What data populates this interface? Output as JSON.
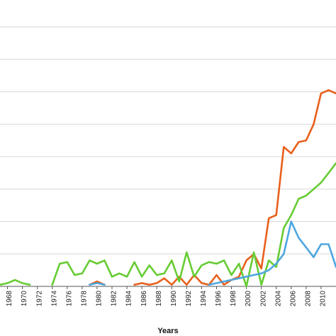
{
  "chart_data": {
    "type": "line",
    "xlabel": "Years",
    "ylabel": "",
    "title": "",
    "xlim": [
      1967,
      2012
    ],
    "ylim": [
      0,
      8
    ],
    "grid": true,
    "x_ticks": [
      1968,
      1970,
      1972,
      1974,
      1976,
      1978,
      1980,
      1982,
      1984,
      1986,
      1988,
      1990,
      1992,
      1994,
      1996,
      1998,
      2000,
      2002,
      2004,
      2006,
      2008,
      2010
    ],
    "series": [
      {
        "color": "#e8601c",
        "points": [
          [
            1979,
            0.05
          ],
          [
            1980,
            0.15
          ],
          [
            1981,
            0.05
          ],
          [
            1985,
            0.05
          ],
          [
            1986,
            0.1
          ],
          [
            1987,
            0.05
          ],
          [
            1988,
            0.1
          ],
          [
            1989,
            0.25
          ],
          [
            1990,
            0.05
          ],
          [
            1991,
            0.3
          ],
          [
            1992,
            0.05
          ],
          [
            1993,
            0.35
          ],
          [
            1994,
            0.1
          ],
          [
            1995,
            0.05
          ],
          [
            1996,
            0.35
          ],
          [
            1997,
            0.05
          ],
          [
            1998,
            0.2
          ],
          [
            1999,
            0.3
          ],
          [
            2000,
            0.8
          ],
          [
            2001,
            1.0
          ],
          [
            2002,
            0.55
          ],
          [
            2003,
            2.1
          ],
          [
            2004,
            2.2
          ],
          [
            2005,
            4.3
          ],
          [
            2006,
            4.1
          ],
          [
            2007,
            4.45
          ],
          [
            2008,
            4.5
          ],
          [
            2009,
            5.0
          ],
          [
            2010,
            5.95
          ],
          [
            2011,
            6.05
          ],
          [
            2012,
            5.95
          ]
        ]
      },
      {
        "color": "#66cc33",
        "points": [
          [
            1967,
            0.05
          ],
          [
            1968,
            0.1
          ],
          [
            1969,
            0.2
          ],
          [
            1970,
            0.1
          ],
          [
            1971,
            0.05
          ],
          [
            1974,
            0.05
          ],
          [
            1975,
            0.7
          ],
          [
            1976,
            0.75
          ],
          [
            1977,
            0.35
          ],
          [
            1978,
            0.4
          ],
          [
            1979,
            0.8
          ],
          [
            1980,
            0.7
          ],
          [
            1981,
            0.8
          ],
          [
            1982,
            0.3
          ],
          [
            1983,
            0.4
          ],
          [
            1984,
            0.3
          ],
          [
            1985,
            0.75
          ],
          [
            1986,
            0.3
          ],
          [
            1987,
            0.65
          ],
          [
            1988,
            0.35
          ],
          [
            1989,
            0.4
          ],
          [
            1990,
            0.8
          ],
          [
            1991,
            0.15
          ],
          [
            1992,
            1.05
          ],
          [
            1993,
            0.3
          ],
          [
            1994,
            0.65
          ],
          [
            1995,
            0.75
          ],
          [
            1996,
            0.7
          ],
          [
            1997,
            0.8
          ],
          [
            1998,
            0.35
          ],
          [
            1999,
            0.7
          ],
          [
            2000,
            0.0
          ],
          [
            2001,
            1.05
          ],
          [
            2002,
            0.05
          ],
          [
            2003,
            0.8
          ],
          [
            2004,
            0.6
          ],
          [
            2005,
            1.8
          ],
          [
            2006,
            2.2
          ],
          [
            2007,
            2.7
          ],
          [
            2008,
            2.8
          ],
          [
            2009,
            3.0
          ],
          [
            2010,
            3.2
          ],
          [
            2011,
            3.5
          ],
          [
            2012,
            3.8
          ]
        ]
      },
      {
        "color": "#4da6e0",
        "points": [
          [
            1979,
            0.05
          ],
          [
            1980,
            0.1
          ],
          [
            1981,
            0.05
          ],
          [
            1995,
            0.05
          ],
          [
            1996,
            0.1
          ],
          [
            1997,
            0.15
          ],
          [
            1998,
            0.2
          ],
          [
            1999,
            0.25
          ],
          [
            2000,
            0.3
          ],
          [
            2001,
            0.35
          ],
          [
            2002,
            0.4
          ],
          [
            2003,
            0.5
          ],
          [
            2004,
            0.7
          ],
          [
            2005,
            1.0
          ],
          [
            2006,
            2.0
          ],
          [
            2007,
            1.5
          ],
          [
            2008,
            1.2
          ],
          [
            2009,
            0.9
          ],
          [
            2010,
            1.3
          ],
          [
            2011,
            1.3
          ],
          [
            2012,
            0.6
          ]
        ]
      }
    ]
  }
}
